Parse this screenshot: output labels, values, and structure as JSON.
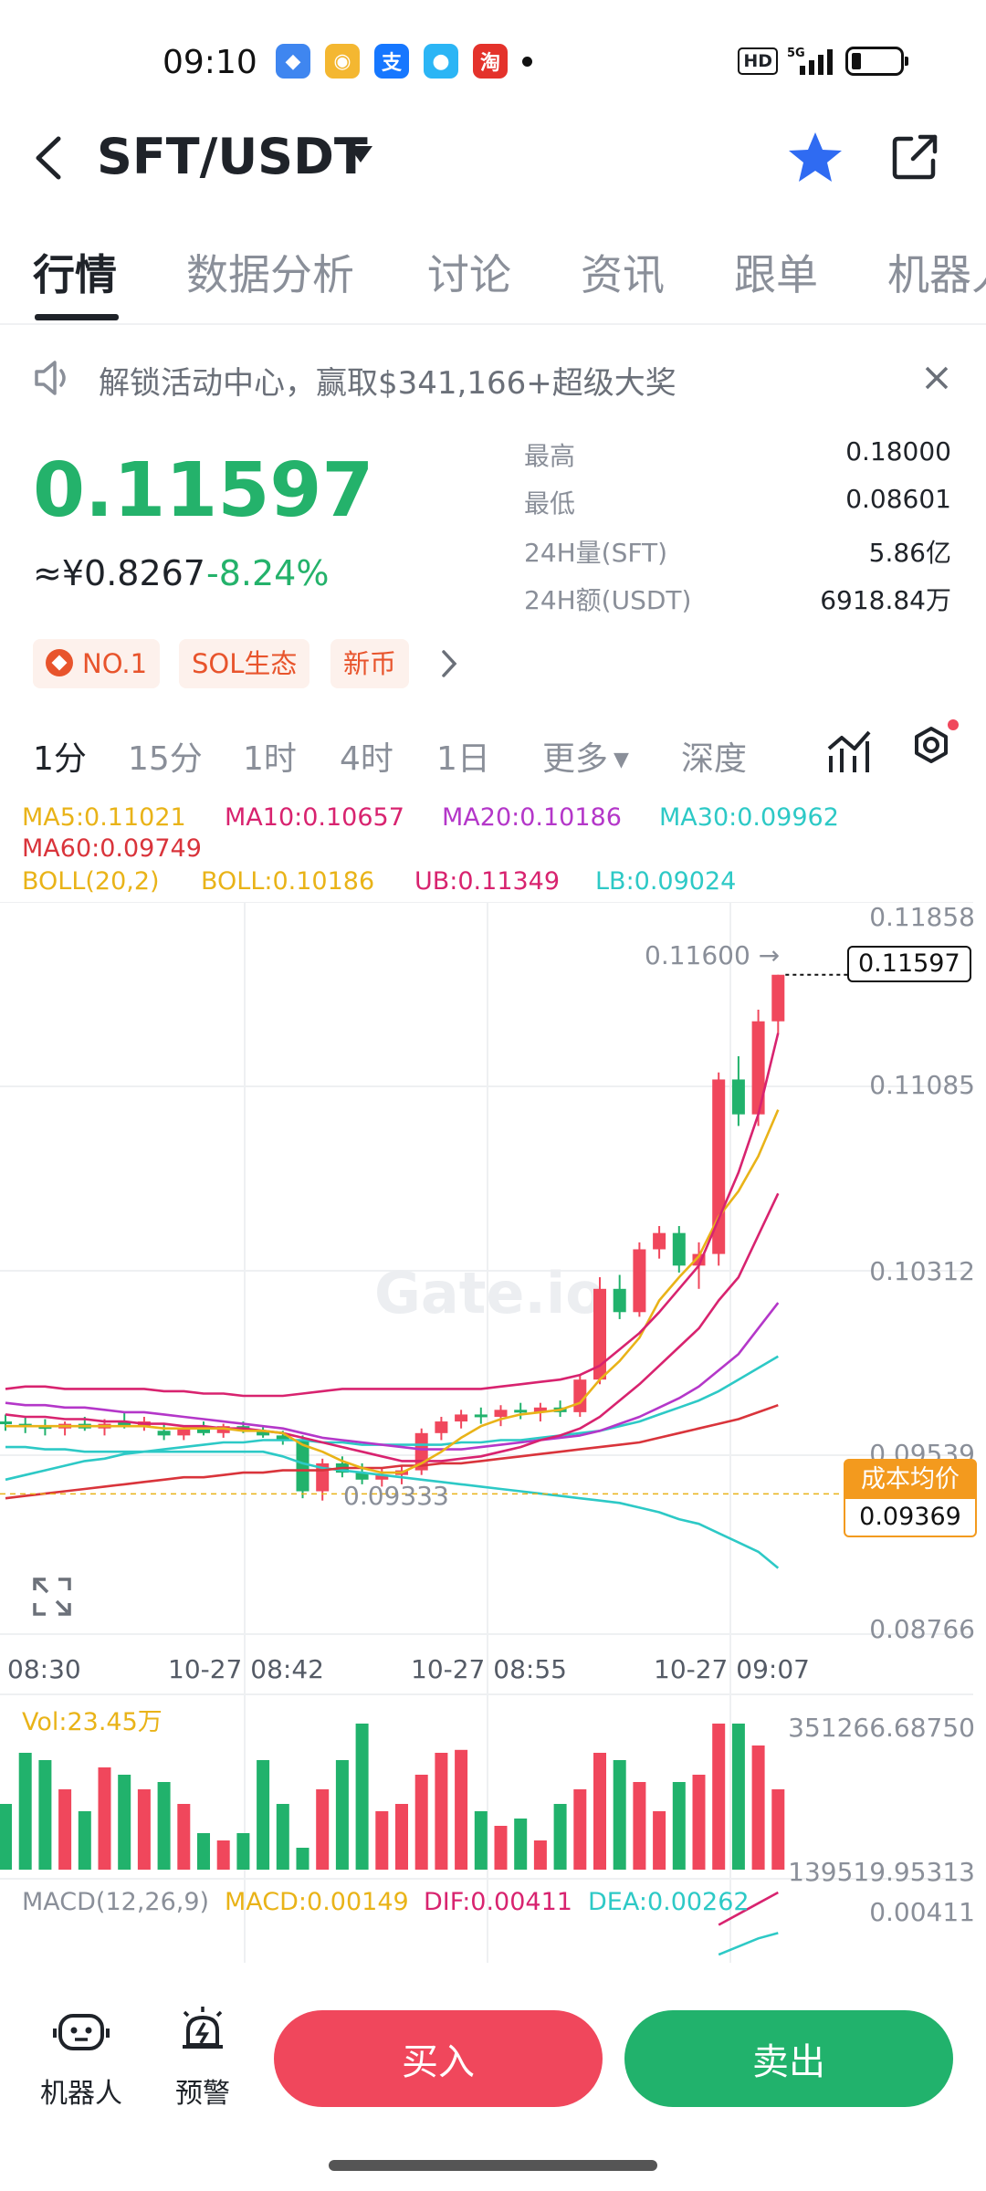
{
  "status_bar": {
    "time": "09:10",
    "network": "HD",
    "signal": "5G"
  },
  "header": {
    "pair": "SFT/USDT"
  },
  "tabs": [
    "行情",
    "数据分析",
    "讨论",
    "资讯",
    "跟单",
    "机器人"
  ],
  "banner": {
    "text": "解锁活动中心，赢取$341,166+超级大奖"
  },
  "price": {
    "last": "0.11597",
    "cny": "≈¥0.8267",
    "change": "-8.24%"
  },
  "stats": [
    {
      "label": "最高",
      "value": "0.18000"
    },
    {
      "label": "最低",
      "value": "0.08601"
    },
    {
      "label": "24H量(SFT)",
      "value": "5.86亿"
    },
    {
      "label": "24H额(USDT)",
      "value": "6918.84万"
    }
  ],
  "tags": [
    "NO.1",
    "SOL生态",
    "新币"
  ],
  "intervals": [
    "1分",
    "15分",
    "1时",
    "4时",
    "1日",
    "更多",
    "深度"
  ],
  "legend": {
    "ma5": "MA5:0.11021",
    "ma10": "MA10:0.10657",
    "ma20": "MA20:0.10186",
    "ma30": "MA30:0.09962",
    "ma60": "MA60:0.09749",
    "boll": "BOLL(20,2)",
    "boll_val": "BOLL:0.10186",
    "ub": "UB:0.11349",
    "lb": "LB:0.09024"
  },
  "chart_labels": {
    "y_ticks": [
      "0.11858",
      "0.11085",
      "0.10312",
      "0.09539",
      "0.08766"
    ],
    "high_marker": "0.11600 →",
    "last_tag": "0.11597",
    "low_marker": "0.09333",
    "cost_label": "成本均价",
    "cost_value": "0.09369",
    "x_ticks": [
      "08:30",
      "10-27 08:42",
      "10-27 08:55",
      "10-27 09:07"
    ],
    "watermark": "Gate.io"
  },
  "volume": {
    "label": "Vol:23.45万",
    "top": "351266.68750",
    "bottom": "139519.95313"
  },
  "macd": {
    "name": "MACD(12,26,9)",
    "macd": "MACD:0.00149",
    "dif": "DIF:0.00411",
    "dea": "DEA:0.00262",
    "right": "0.00411"
  },
  "bottom_bar": {
    "robot": "机器人",
    "alert": "预警",
    "buy": "买入",
    "sell": "卖出"
  },
  "colors": {
    "up": "#f0475c",
    "down": "#21b26c",
    "ma5": "#e9b318",
    "ma10": "#d8236f",
    "ma20": "#b437c9",
    "ma30": "#2dc9c6",
    "ma60": "#d9343b"
  },
  "chart_data": {
    "type": "candlestick",
    "y_range": [
      0.08766,
      0.11858
    ],
    "x_ticks": [
      "08:30",
      "10-27 08:42",
      "10-27 08:55",
      "10-27 09:07"
    ],
    "candles": [
      {
        "o": 0.0968,
        "h": 0.0971,
        "l": 0.0964,
        "c": 0.0967
      },
      {
        "o": 0.0967,
        "h": 0.097,
        "l": 0.0963,
        "c": 0.0966
      },
      {
        "o": 0.0966,
        "h": 0.0969,
        "l": 0.0962,
        "c": 0.0965
      },
      {
        "o": 0.0965,
        "h": 0.0968,
        "l": 0.0962,
        "c": 0.0967
      },
      {
        "o": 0.0967,
        "h": 0.097,
        "l": 0.0964,
        "c": 0.0965
      },
      {
        "o": 0.0965,
        "h": 0.0969,
        "l": 0.0962,
        "c": 0.0967
      },
      {
        "o": 0.0968,
        "h": 0.0972,
        "l": 0.0965,
        "c": 0.0966
      },
      {
        "o": 0.0966,
        "h": 0.097,
        "l": 0.0964,
        "c": 0.0968
      },
      {
        "o": 0.0964,
        "h": 0.0967,
        "l": 0.096,
        "c": 0.0962
      },
      {
        "o": 0.0962,
        "h": 0.0966,
        "l": 0.096,
        "c": 0.0965
      },
      {
        "o": 0.0965,
        "h": 0.0968,
        "l": 0.0962,
        "c": 0.0963
      },
      {
        "o": 0.0963,
        "h": 0.0967,
        "l": 0.0961,
        "c": 0.0966
      },
      {
        "o": 0.0966,
        "h": 0.0968,
        "l": 0.0963,
        "c": 0.0964
      },
      {
        "o": 0.0964,
        "h": 0.0966,
        "l": 0.0961,
        "c": 0.0962
      },
      {
        "o": 0.0962,
        "h": 0.0964,
        "l": 0.0958,
        "c": 0.096
      },
      {
        "o": 0.096,
        "h": 0.0962,
        "l": 0.0935,
        "c": 0.0938
      },
      {
        "o": 0.0938,
        "h": 0.0952,
        "l": 0.0934,
        "c": 0.095
      },
      {
        "o": 0.095,
        "h": 0.0953,
        "l": 0.0944,
        "c": 0.0946
      },
      {
        "o": 0.0946,
        "h": 0.095,
        "l": 0.0941,
        "c": 0.0943
      },
      {
        "o": 0.0943,
        "h": 0.0948,
        "l": 0.094,
        "c": 0.0945
      },
      {
        "o": 0.0945,
        "h": 0.0949,
        "l": 0.0941,
        "c": 0.0947
      },
      {
        "o": 0.0947,
        "h": 0.0965,
        "l": 0.0945,
        "c": 0.0963
      },
      {
        "o": 0.0963,
        "h": 0.097,
        "l": 0.096,
        "c": 0.0968
      },
      {
        "o": 0.0968,
        "h": 0.0973,
        "l": 0.0965,
        "c": 0.0971
      },
      {
        "o": 0.0971,
        "h": 0.0974,
        "l": 0.0967,
        "c": 0.097
      },
      {
        "o": 0.097,
        "h": 0.0975,
        "l": 0.0966,
        "c": 0.0973
      },
      {
        "o": 0.0973,
        "h": 0.0976,
        "l": 0.0969,
        "c": 0.0972
      },
      {
        "o": 0.0972,
        "h": 0.0976,
        "l": 0.0968,
        "c": 0.0974
      },
      {
        "o": 0.0974,
        "h": 0.0977,
        "l": 0.097,
        "c": 0.0972
      },
      {
        "o": 0.0972,
        "h": 0.0988,
        "l": 0.097,
        "c": 0.0986
      },
      {
        "o": 0.0986,
        "h": 0.103,
        "l": 0.0984,
        "c": 0.1025
      },
      {
        "o": 0.1025,
        "h": 0.1031,
        "l": 0.1012,
        "c": 0.1015
      },
      {
        "o": 0.1015,
        "h": 0.1045,
        "l": 0.1013,
        "c": 0.1042
      },
      {
        "o": 0.1042,
        "h": 0.1052,
        "l": 0.1038,
        "c": 0.1049
      },
      {
        "o": 0.1049,
        "h": 0.1052,
        "l": 0.1032,
        "c": 0.1035
      },
      {
        "o": 0.1035,
        "h": 0.1045,
        "l": 0.1025,
        "c": 0.104
      },
      {
        "o": 0.104,
        "h": 0.1118,
        "l": 0.1035,
        "c": 0.1115
      },
      {
        "o": 0.1115,
        "h": 0.1125,
        "l": 0.1095,
        "c": 0.11
      },
      {
        "o": 0.11,
        "h": 0.1145,
        "l": 0.1095,
        "c": 0.114
      },
      {
        "o": 0.114,
        "h": 0.116,
        "l": 0.1135,
        "c": 0.116
      }
    ],
    "ma5": [
      0.0966,
      0.0966,
      0.0966,
      0.0966,
      0.0966,
      0.0966,
      0.0966,
      0.0966,
      0.0965,
      0.0965,
      0.0965,
      0.0965,
      0.0964,
      0.0964,
      0.0963,
      0.0958,
      0.0955,
      0.0951,
      0.0948,
      0.0946,
      0.0946,
      0.095,
      0.0955,
      0.0961,
      0.0966,
      0.0969,
      0.0971,
      0.0972,
      0.0973,
      0.0976,
      0.0986,
      0.0994,
      0.1004,
      0.102,
      0.103,
      0.1039,
      0.1056,
      0.1067,
      0.1082,
      0.1102
    ],
    "ma10": [
      0.0971,
      0.097,
      0.097,
      0.0969,
      0.0969,
      0.0968,
      0.0968,
      0.0967,
      0.0967,
      0.0966,
      0.0966,
      0.0965,
      0.0965,
      0.0964,
      0.0963,
      0.0961,
      0.0959,
      0.0957,
      0.0955,
      0.0953,
      0.0951,
      0.0951,
      0.0951,
      0.0952,
      0.0953,
      0.0955,
      0.0957,
      0.096,
      0.0962,
      0.0965,
      0.097,
      0.0977,
      0.0984,
      0.0992,
      0.1,
      0.1008,
      0.102,
      0.103,
      0.1048,
      0.1066
    ],
    "ma20": [
      0.0976,
      0.0975,
      0.0975,
      0.0974,
      0.0974,
      0.0973,
      0.0972,
      0.0972,
      0.0971,
      0.097,
      0.0969,
      0.0968,
      0.0967,
      0.0966,
      0.0965,
      0.0963,
      0.0961,
      0.096,
      0.0959,
      0.0958,
      0.0957,
      0.0956,
      0.0956,
      0.0956,
      0.0957,
      0.0958,
      0.0959,
      0.096,
      0.0961,
      0.0962,
      0.0964,
      0.0967,
      0.097,
      0.0974,
      0.0978,
      0.0983,
      0.099,
      0.0997,
      0.1008,
      0.1019
    ],
    "ma30": [
      0.0943,
      0.0945,
      0.0947,
      0.0949,
      0.0951,
      0.0952,
      0.0954,
      0.0955,
      0.0956,
      0.0957,
      0.0958,
      0.0959,
      0.0959,
      0.096,
      0.096,
      0.096,
      0.0959,
      0.0959,
      0.0958,
      0.0958,
      0.0958,
      0.0958,
      0.0958,
      0.0959,
      0.0959,
      0.096,
      0.096,
      0.0961,
      0.0962,
      0.0963,
      0.0964,
      0.0966,
      0.0968,
      0.0971,
      0.0974,
      0.0977,
      0.0981,
      0.0986,
      0.0991,
      0.0996
    ],
    "ma60": [
      0.0935,
      0.0936,
      0.0937,
      0.0938,
      0.0939,
      0.094,
      0.0941,
      0.0942,
      0.0943,
      0.0944,
      0.0944,
      0.0945,
      0.0946,
      0.0946,
      0.0947,
      0.0947,
      0.0947,
      0.0948,
      0.0948,
      0.0948,
      0.0949,
      0.0949,
      0.095,
      0.095,
      0.0951,
      0.0952,
      0.0953,
      0.0954,
      0.0955,
      0.0956,
      0.0957,
      0.0958,
      0.0959,
      0.0961,
      0.0963,
      0.0965,
      0.0967,
      0.0969,
      0.0972,
      0.0975
    ],
    "ub": [
      0.0982,
      0.0983,
      0.0983,
      0.0982,
      0.0982,
      0.0982,
      0.0982,
      0.0982,
      0.0981,
      0.0981,
      0.098,
      0.098,
      0.0979,
      0.0979,
      0.0979,
      0.098,
      0.0981,
      0.0982,
      0.0982,
      0.0982,
      0.0982,
      0.0982,
      0.0982,
      0.0982,
      0.0982,
      0.0983,
      0.0984,
      0.0985,
      0.0986,
      0.0988,
      0.0992,
      0.0999,
      0.1006,
      0.1015,
      0.1025,
      0.1035,
      0.1055,
      0.1075,
      0.11,
      0.1135
    ],
    "lb": [
      0.0957,
      0.0957,
      0.0956,
      0.0956,
      0.0955,
      0.0955,
      0.0955,
      0.0955,
      0.0955,
      0.0955,
      0.0955,
      0.0955,
      0.0955,
      0.0955,
      0.0953,
      0.095,
      0.0948,
      0.0947,
      0.0946,
      0.0945,
      0.0944,
      0.0943,
      0.0942,
      0.0941,
      0.094,
      0.0939,
      0.0938,
      0.0937,
      0.0936,
      0.0935,
      0.0934,
      0.0933,
      0.0931,
      0.0929,
      0.0926,
      0.0924,
      0.092,
      0.0916,
      0.0912,
      0.0905
    ],
    "volume": [
      0.45,
      0.8,
      0.75,
      0.55,
      0.4,
      0.7,
      0.65,
      0.55,
      0.6,
      0.45,
      0.25,
      0.2,
      0.25,
      0.75,
      0.45,
      0.15,
      0.55,
      0.75,
      1.0,
      0.4,
      0.45,
      0.65,
      0.8,
      0.82,
      0.4,
      0.3,
      0.35,
      0.2,
      0.45,
      0.55,
      0.8,
      0.75,
      0.6,
      0.4,
      0.6,
      0.65,
      1.0,
      1.0,
      0.85,
      0.55
    ],
    "macd_dif": [
      0.0029,
      0.0033,
      0.0037,
      0.0041
    ],
    "macd_dea": [
      0.0018,
      0.0021,
      0.0024,
      0.0026
    ]
  }
}
